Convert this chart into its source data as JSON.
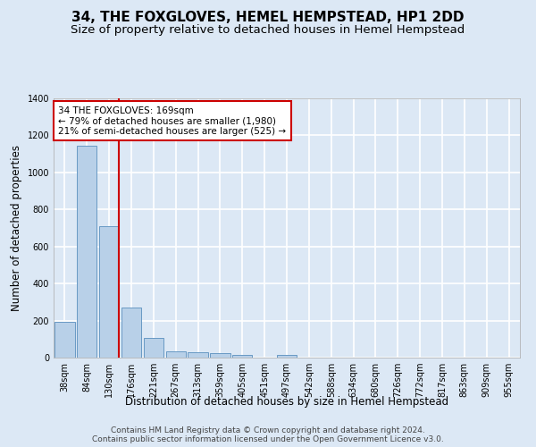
{
  "title": "34, THE FOXGLOVES, HEMEL HEMPSTEAD, HP1 2DD",
  "subtitle": "Size of property relative to detached houses in Hemel Hempstead",
  "xlabel": "Distribution of detached houses by size in Hemel Hempstead",
  "ylabel": "Number of detached properties",
  "footer1": "Contains HM Land Registry data © Crown copyright and database right 2024.",
  "footer2": "Contains public sector information licensed under the Open Government Licence v3.0.",
  "bar_labels": [
    "38sqm",
    "84sqm",
    "130sqm",
    "176sqm",
    "221sqm",
    "267sqm",
    "313sqm",
    "359sqm",
    "405sqm",
    "451sqm",
    "497sqm",
    "542sqm",
    "588sqm",
    "634sqm",
    "680sqm",
    "726sqm",
    "772sqm",
    "817sqm",
    "863sqm",
    "909sqm",
    "955sqm"
  ],
  "bar_values": [
    195,
    1145,
    710,
    270,
    105,
    35,
    28,
    25,
    13,
    0,
    14,
    0,
    0,
    0,
    0,
    0,
    0,
    0,
    0,
    0,
    0
  ],
  "bar_color": "#b8d0e8",
  "bar_edge_color": "#6899c4",
  "reference_line_color": "#cc0000",
  "annotation_text": "34 THE FOXGLOVES: 169sqm\n← 79% of detached houses are smaller (1,980)\n21% of semi-detached houses are larger (525) →",
  "annotation_box_facecolor": "#ffffff",
  "annotation_box_edgecolor": "#cc0000",
  "ylim": [
    0,
    1400
  ],
  "yticks": [
    0,
    200,
    400,
    600,
    800,
    1000,
    1200,
    1400
  ],
  "background_color": "#dce8f5",
  "grid_color": "#ffffff",
  "title_fontsize": 11,
  "subtitle_fontsize": 9.5,
  "axis_label_fontsize": 8.5,
  "tick_fontsize": 7,
  "footer_fontsize": 6.5,
  "annotation_fontsize": 7.5
}
